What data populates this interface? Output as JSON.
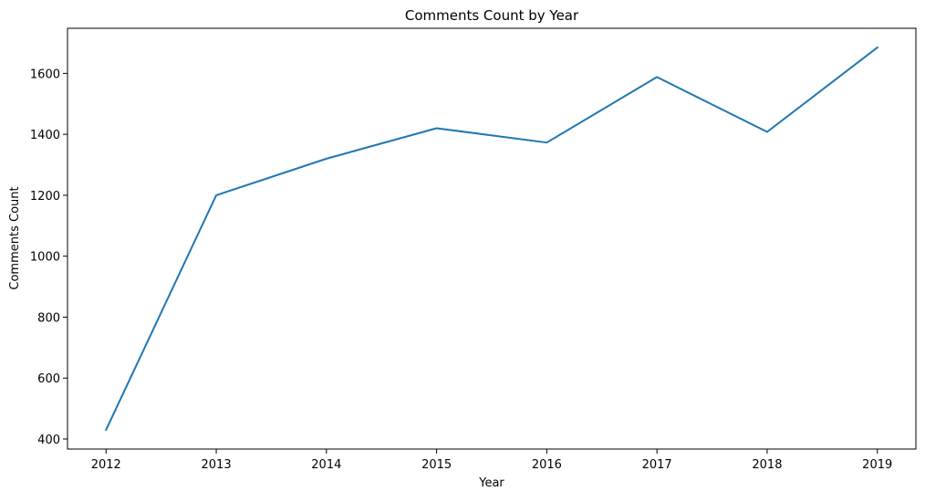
{
  "chart_data": {
    "type": "line",
    "title": "Comments Count by Year",
    "xlabel": "Year",
    "ylabel": "Comments Count",
    "x": [
      2012,
      2013,
      2014,
      2015,
      2016,
      2017,
      2018,
      2019
    ],
    "series": [
      {
        "values": [
          430,
          1200,
          1320,
          1420,
          1373,
          1588,
          1408,
          1685
        ],
        "color": "#1f77b4"
      }
    ],
    "xticks": [
      "2012",
      "2013",
      "2014",
      "2015",
      "2016",
      "2017",
      "2018",
      "2019"
    ],
    "yticks": [
      400,
      600,
      800,
      1000,
      1200,
      1400,
      1600
    ],
    "xlim": [
      2011.65,
      2019.35
    ],
    "ylim": [
      367,
      1748
    ],
    "grid": false,
    "legend": "none"
  }
}
